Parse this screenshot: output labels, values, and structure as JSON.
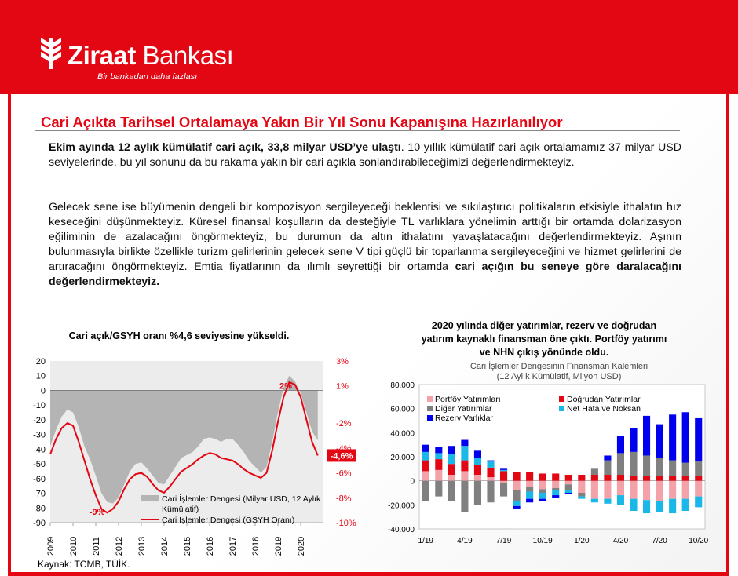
{
  "brand": {
    "name_bold": "Ziraat",
    "name_rest": " Bankası",
    "tagline": "Bir bankadan daha fazlası",
    "color": "#e30613"
  },
  "title": "Cari Açıkta Tarihsel Ortalamaya Yakın Bir Yıl Sonu Kapanışına Hazırlanılıyor",
  "paragraph1": {
    "bold": "Ekim ayında 12 aylık kümülatif cari açık, 33,8 milyar USD’ye ulaştı",
    "rest": ". 10 yıllık kümülatif cari açık ortalamamız 37 milyar USD seviyelerinde, bu yıl sonunu da bu rakama yakın bir cari açıkla sonlandırabileceğimizi değerlendirmekteyiz."
  },
  "paragraph2": {
    "text": "Gelecek sene ise büyümenin dengeli bir kompozisyon sergileyeceği beklentisi ve sıkılaştırıcı politikaların etkisiyle ithalatın hız keseceğini düşünmekteyiz. Küresel finansal koşulların da desteğiyle TL varlıklara yönelimin arttığı bir ortamda dolarizasyon eğiliminin de azalacağını öngörmekteyiz, bu durumun da altın ithalatını yavaşlatacağını değerlendirmekteyiz. Aşının bulunmasıyla birlikte özellikle turizm gelirlerinin gelecek sene V tipi güçlü bir toparlanma sergileyeceğini ve hizmet gelirlerini de artıracağını öngörmekteyiz. Emtia fiyatlarının da ılımlı seyrettiği bir ortamda ",
    "bold": "cari açığın bu seneye göre daralacağını değerlendirmekteyiz."
  },
  "source": "Kaynak: TCMB, TÜİK.",
  "chart_data": [
    {
      "type": "area",
      "heading": "Cari açık/GSYH oranı %4,6 seviyesine yükseldi.",
      "x_ticks": [
        "2009",
        "2010",
        "2011",
        "2012",
        "2013",
        "2014",
        "2015",
        "2016",
        "2017",
        "2018",
        "2019",
        "2020"
      ],
      "y_left_ticks": [
        "20",
        "10",
        "0",
        "-10",
        "-20",
        "-30",
        "-40",
        "-50",
        "-60",
        "-70",
        "-80",
        "-90"
      ],
      "y_left_lim": [
        -90,
        20
      ],
      "y_right_ticks": [
        "3%",
        "1%",
        "-2%",
        "-4%",
        "-6%",
        "-8%",
        "-10%"
      ],
      "y_right_lim": [
        -10,
        3
      ],
      "x_lim": [
        2009,
        2021
      ],
      "series": [
        {
          "name": "Cari İşlemler Dengesi (Milyar USD, 12 Aylık Kümülatif)",
          "style": "area",
          "color": "#b4b4b4",
          "x": [
            2009.0,
            2009.25,
            2009.5,
            2009.75,
            2010.0,
            2010.25,
            2010.5,
            2010.75,
            2011.0,
            2011.25,
            2011.5,
            2011.75,
            2012.0,
            2012.25,
            2012.5,
            2012.75,
            2013.0,
            2013.25,
            2013.5,
            2013.75,
            2014.0,
            2014.25,
            2014.5,
            2014.75,
            2015.0,
            2015.25,
            2015.5,
            2015.75,
            2016.0,
            2016.25,
            2016.5,
            2016.75,
            2017.0,
            2017.25,
            2017.5,
            2017.75,
            2018.0,
            2018.25,
            2018.5,
            2018.75,
            2019.0,
            2019.25,
            2019.5,
            2019.75,
            2020.0,
            2020.25,
            2020.5,
            2020.75
          ],
          "values": [
            -38,
            -27,
            -18,
            -13,
            -15,
            -25,
            -38,
            -47,
            -58,
            -70,
            -76,
            -77,
            -73,
            -64,
            -55,
            -50,
            -49,
            -53,
            -58,
            -63,
            -64,
            -58,
            -52,
            -46,
            -44,
            -42,
            -38,
            -33,
            -32,
            -33,
            -35,
            -33,
            -33,
            -37,
            -42,
            -48,
            -52,
            -56,
            -52,
            -35,
            -15,
            2,
            10,
            6,
            -2,
            -15,
            -28,
            -34
          ]
        },
        {
          "name": "Cari İşlemler Dengesi (GSYH Oranı)",
          "style": "line",
          "axis": "right",
          "color": "#e30613",
          "x": [
            2009.0,
            2009.25,
            2009.5,
            2009.75,
            2010.0,
            2010.25,
            2010.5,
            2010.75,
            2011.0,
            2011.25,
            2011.5,
            2011.75,
            2012.0,
            2012.25,
            2012.5,
            2012.75,
            2013.0,
            2013.25,
            2013.5,
            2013.75,
            2014.0,
            2014.25,
            2014.5,
            2014.75,
            2015.0,
            2015.25,
            2015.5,
            2015.75,
            2016.0,
            2016.25,
            2016.5,
            2016.75,
            2017.0,
            2017.25,
            2017.5,
            2017.75,
            2018.0,
            2018.25,
            2018.5,
            2018.75,
            2019.0,
            2019.25,
            2019.5,
            2019.75,
            2020.0,
            2020.25,
            2020.5,
            2020.75
          ],
          "values": [
            -4.5,
            -3.3,
            -2.4,
            -2.0,
            -2.2,
            -3.5,
            -5.0,
            -6.5,
            -7.8,
            -8.9,
            -9.2,
            -8.9,
            -8.3,
            -7.3,
            -6.5,
            -6.1,
            -6.0,
            -6.3,
            -6.9,
            -7.4,
            -7.6,
            -7.1,
            -6.5,
            -5.9,
            -5.6,
            -5.3,
            -4.9,
            -4.6,
            -4.4,
            -4.5,
            -4.8,
            -4.9,
            -5.0,
            -5.3,
            -5.7,
            -6.0,
            -6.2,
            -6.4,
            -6.0,
            -4.2,
            -1.9,
            0.1,
            1.3,
            1.1,
            0.1,
            -1.7,
            -3.5,
            -4.6
          ]
        }
      ],
      "annotations": [
        {
          "text": "2%",
          "x": 2019.55,
          "y_right": 1.4
        },
        {
          "text": "-9%",
          "x": 2010.85,
          "y_right": -9.5
        },
        {
          "text": "-4,6%",
          "x": 2020.75,
          "y_right": -4.6,
          "badge_color": "#e30613"
        }
      ]
    },
    {
      "type": "bar",
      "heading_lines": [
        "2020 yılında diğer yatırımlar, rezerv ve doğrudan",
        "yatırım kaynaklı finansman öne çıktı. Portföy yatırımı",
        "ve NHN çıkış yönünde oldu."
      ],
      "title_lines": [
        "Cari İşlemler Dengesinin Finansman Kalemleri",
        "(12 Aylık Kümülatif, Milyon USD)"
      ],
      "y_ticks": [
        "80.000",
        "60.000",
        "40.000",
        "20.000",
        "0",
        "-20.000",
        "-40.000"
      ],
      "ylim": [
        -40000,
        80000
      ],
      "categories": [
        "1/19",
        "2/19",
        "3/19",
        "4/19",
        "5/19",
        "6/19",
        "7/19",
        "8/19",
        "9/19",
        "10/19",
        "11/19",
        "12/19",
        "1/20",
        "2/20",
        "3/20",
        "4/20",
        "5/20",
        "6/20",
        "7/20",
        "8/20",
        "9/20",
        "10/20"
      ],
      "x_tick_labels": [
        "1/19",
        "4/19",
        "7/19",
        "10/19",
        "1/20",
        "4/20",
        "7/20",
        "10/20"
      ],
      "x_tick_indices": [
        0,
        3,
        6,
        9,
        12,
        15,
        18,
        21
      ],
      "stacked": true,
      "series": [
        {
          "name": "Portföy Yatırımları",
          "color": "#f2a2a8",
          "values": [
            8000,
            9000,
            5000,
            8000,
            5000,
            3000,
            -2000,
            -8000,
            -5000,
            -7000,
            -6000,
            -3000,
            -10000,
            -15000,
            -15000,
            -12000,
            -15000,
            -16000,
            -17000,
            -15000,
            -15000,
            -13000
          ]
        },
        {
          "name": "Doğrudan Yatırımlar",
          "color": "#e30613",
          "values": [
            9000,
            9000,
            9000,
            9000,
            8000,
            8000,
            8000,
            7000,
            7000,
            6000,
            6000,
            5000,
            5000,
            5000,
            5000,
            5000,
            4000,
            4000,
            4000,
            4000,
            4000,
            4000
          ]
        },
        {
          "name": "Diğer Yatırımlar",
          "color": "#808080",
          "values": [
            -17000,
            -13000,
            -17000,
            -26000,
            -20000,
            -18000,
            -11000,
            -9000,
            -4000,
            -3000,
            -2000,
            -5000,
            -3000,
            5000,
            12000,
            18000,
            20000,
            17000,
            15000,
            13000,
            11000,
            12000
          ]
        },
        {
          "name": "Net Hata ve Noksan",
          "color": "#19b8e8",
          "values": [
            7000,
            5000,
            8000,
            12000,
            6000,
            5000,
            1000,
            -4000,
            -6000,
            -5000,
            -4000,
            -2000,
            -2000,
            -3000,
            -4000,
            -8000,
            -10000,
            -11000,
            -9000,
            -12000,
            -10000,
            -9000
          ]
        },
        {
          "name": "Rezerv Varlıklar",
          "color": "#0000ee",
          "values": [
            6000,
            5000,
            7000,
            5000,
            6000,
            1000,
            1000,
            -2000,
            -3000,
            -2000,
            -2000,
            -1000,
            0,
            0,
            4000,
            14000,
            20000,
            33000,
            28000,
            38000,
            42000,
            36000
          ]
        }
      ],
      "legend_position": "top-left"
    }
  ]
}
